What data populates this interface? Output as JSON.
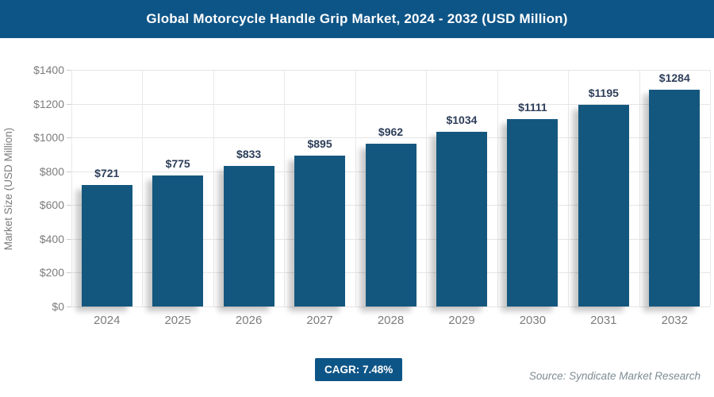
{
  "header": {
    "title": "Global Motorcycle Handle Grip Market, 2024 - 2032 (USD Million)"
  },
  "chart_data": {
    "type": "bar",
    "title": "Global Motorcycle Handle Grip Market, 2024 - 2032 (USD Million)",
    "categories": [
      "2024",
      "2025",
      "2026",
      "2027",
      "2028",
      "2029",
      "2030",
      "2031",
      "2032"
    ],
    "values": [
      721,
      775,
      833,
      895,
      962,
      1034,
      1111,
      1195,
      1284
    ],
    "value_labels": [
      "$721",
      "$775",
      "$833",
      "$895",
      "$962",
      "$1034",
      "$1111",
      "$1195",
      "$1284"
    ],
    "xlabel": "",
    "ylabel": "Market Size (USD Million)",
    "ylim": [
      0,
      1400
    ],
    "ytick_step": 200,
    "ytick_labels": [
      "$0",
      "$200",
      "$400",
      "$600",
      "$800",
      "$1000",
      "$1200",
      "$1400"
    ],
    "grid": true,
    "legend": "none",
    "bar_color": "#14577e"
  },
  "footer": {
    "cagr_label": "CAGR: 7.48%",
    "source": "Source: Syndicate Market Research"
  },
  "colors": {
    "header_bg": "#0e5587",
    "bar": "#14577e",
    "value_label": "#2d3e59",
    "axis_text": "#7c7c7c",
    "gridline": "#e5e5e5",
    "source_text": "#7e8c94",
    "badge_bg": "#0e5587"
  }
}
